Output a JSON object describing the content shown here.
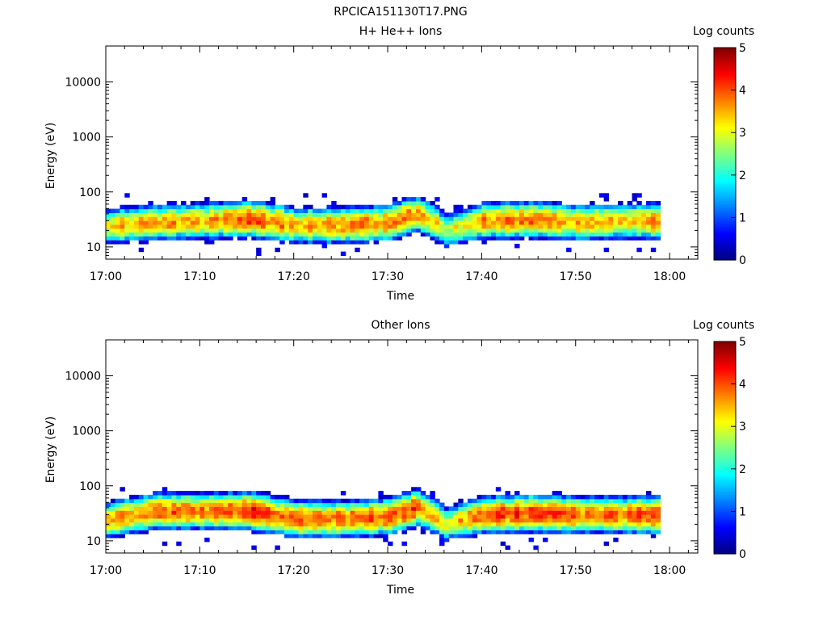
{
  "page_title": "RPCICA151130T17.PNG",
  "chart_data": [
    {
      "type": "heatmap",
      "title": "H+ He++ Ions",
      "xlabel": "Time",
      "ylabel": "Energy (eV)",
      "x_ticks": [
        "17:00",
        "17:10",
        "17:20",
        "17:30",
        "17:40",
        "17:50",
        "18:00"
      ],
      "x_range": [
        "17:00",
        "18:03"
      ],
      "y_scale": "log",
      "y_ticks": [
        10,
        100,
        1000,
        10000
      ],
      "y_tick_labels": [
        "10",
        "100",
        "1000",
        "10000"
      ],
      "y_range": [
        6,
        45000
      ],
      "time_range_of_data": [
        "17:00",
        "17:59"
      ],
      "energy_range_of_data": [
        7,
        95
      ],
      "colorbar": {
        "label": "Log counts",
        "range": [
          0,
          5
        ],
        "ticks": [
          "0",
          "1",
          "2",
          "3",
          "4",
          "5"
        ],
        "colormap": "jet"
      },
      "peak_energy_profile": [
        {
          "t": "17:00",
          "energy": 24,
          "max_log": 3.3
        },
        {
          "t": "17:05",
          "energy": 28,
          "max_log": 3.6
        },
        {
          "t": "17:10",
          "energy": 30,
          "max_log": 3.5
        },
        {
          "t": "17:15",
          "energy": 33,
          "max_log": 3.9
        },
        {
          "t": "17:20",
          "energy": 25,
          "max_log": 3.6
        },
        {
          "t": "17:25",
          "energy": 25,
          "max_log": 3.7
        },
        {
          "t": "17:30",
          "energy": 28,
          "max_log": 3.7
        },
        {
          "t": "17:33",
          "energy": 40,
          "max_log": 3.7
        },
        {
          "t": "17:36",
          "energy": 20,
          "max_log": 2.8
        },
        {
          "t": "17:40",
          "energy": 30,
          "max_log": 3.6
        },
        {
          "t": "17:45",
          "energy": 32,
          "max_log": 3.8
        },
        {
          "t": "17:50",
          "energy": 28,
          "max_log": 3.4
        },
        {
          "t": "17:55",
          "energy": 30,
          "max_log": 3.5
        },
        {
          "t": "17:59",
          "energy": 30,
          "max_log": 3.8
        }
      ]
    },
    {
      "type": "heatmap",
      "title": "Other Ions",
      "xlabel": "Time",
      "ylabel": "Energy (eV)",
      "x_ticks": [
        "17:00",
        "17:10",
        "17:20",
        "17:30",
        "17:40",
        "17:50",
        "18:00"
      ],
      "x_range": [
        "17:00",
        "18:03"
      ],
      "y_scale": "log",
      "y_ticks": [
        10,
        100,
        1000,
        10000
      ],
      "y_tick_labels": [
        "10",
        "100",
        "1000",
        "10000"
      ],
      "y_range": [
        6,
        45000
      ],
      "time_range_of_data": [
        "17:00",
        "17:59"
      ],
      "energy_range_of_data": [
        7,
        95
      ],
      "colorbar": {
        "label": "Log counts",
        "range": [
          0,
          5
        ],
        "ticks": [
          "0",
          "1",
          "2",
          "3",
          "4",
          "5"
        ],
        "colormap": "jet"
      },
      "peak_energy_profile": [
        {
          "t": "17:00",
          "energy": 24,
          "max_log": 3.5
        },
        {
          "t": "17:05",
          "energy": 35,
          "max_log": 3.9
        },
        {
          "t": "17:10",
          "energy": 35,
          "max_log": 3.8
        },
        {
          "t": "17:15",
          "energy": 35,
          "max_log": 4.2
        },
        {
          "t": "17:20",
          "energy": 25,
          "max_log": 3.9
        },
        {
          "t": "17:25",
          "energy": 25,
          "max_log": 3.9
        },
        {
          "t": "17:30",
          "energy": 28,
          "max_log": 3.9
        },
        {
          "t": "17:33",
          "energy": 40,
          "max_log": 4.0
        },
        {
          "t": "17:36",
          "energy": 20,
          "max_log": 3.0
        },
        {
          "t": "17:40",
          "energy": 30,
          "max_log": 4.0
        },
        {
          "t": "17:45",
          "energy": 32,
          "max_log": 4.2
        },
        {
          "t": "17:50",
          "energy": 30,
          "max_log": 3.8
        },
        {
          "t": "17:55",
          "energy": 30,
          "max_log": 3.9
        },
        {
          "t": "17:59",
          "energy": 30,
          "max_log": 4.1
        }
      ]
    }
  ]
}
